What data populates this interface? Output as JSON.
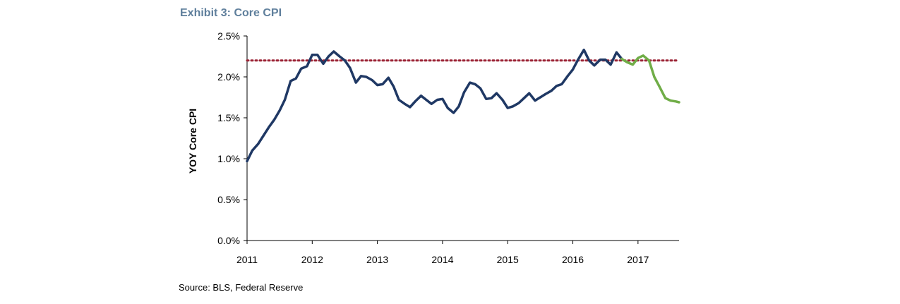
{
  "exhibit": {
    "title": "Exhibit 3: Core CPI",
    "source": "Source: BLS, Federal Reserve"
  },
  "chart_data": {
    "type": "line",
    "title": "Exhibit 3: Core CPI",
    "xlabel": "",
    "ylabel": "YOY Core CPI",
    "xlim": [
      2011.0,
      2017.63
    ],
    "ylim": [
      0,
      2.5
    ],
    "x_ticks": [
      2011,
      2012,
      2013,
      2014,
      2015,
      2016,
      2017
    ],
    "y_ticks": [
      0.0,
      0.5,
      1.0,
      1.5,
      2.0,
      2.5
    ],
    "y_tick_labels": [
      "0.0%",
      "0.5%",
      "1.0%",
      "1.5%",
      "2.0%",
      "2.5%"
    ],
    "x_tick_labels": [
      "2011",
      "2012",
      "2013",
      "2014",
      "2015",
      "2016",
      "2017"
    ],
    "grid": false,
    "legend": "none",
    "series": [
      {
        "color": "#1f3864",
        "points": [
          [
            2011.0,
            0.97
          ],
          [
            2011.08,
            1.1
          ],
          [
            2011.17,
            1.18
          ],
          [
            2011.25,
            1.28
          ],
          [
            2011.33,
            1.38
          ],
          [
            2011.42,
            1.48
          ],
          [
            2011.5,
            1.59
          ],
          [
            2011.58,
            1.72
          ],
          [
            2011.67,
            1.95
          ],
          [
            2011.75,
            1.98
          ],
          [
            2011.83,
            2.1
          ],
          [
            2011.92,
            2.13
          ],
          [
            2012.0,
            2.27
          ],
          [
            2012.08,
            2.27
          ],
          [
            2012.17,
            2.16
          ],
          [
            2012.25,
            2.25
          ],
          [
            2012.33,
            2.31
          ],
          [
            2012.42,
            2.25
          ],
          [
            2012.5,
            2.2
          ],
          [
            2012.58,
            2.11
          ],
          [
            2012.67,
            1.93
          ],
          [
            2012.75,
            2.01
          ],
          [
            2012.83,
            2.0
          ],
          [
            2012.92,
            1.96
          ],
          [
            2013.0,
            1.9
          ],
          [
            2013.08,
            1.91
          ],
          [
            2013.17,
            1.99
          ],
          [
            2013.25,
            1.88
          ],
          [
            2013.33,
            1.72
          ],
          [
            2013.42,
            1.67
          ],
          [
            2013.5,
            1.63
          ],
          [
            2013.58,
            1.7
          ],
          [
            2013.67,
            1.77
          ],
          [
            2013.75,
            1.72
          ],
          [
            2013.83,
            1.67
          ],
          [
            2013.92,
            1.72
          ],
          [
            2014.0,
            1.73
          ],
          [
            2014.08,
            1.62
          ],
          [
            2014.17,
            1.56
          ],
          [
            2014.25,
            1.64
          ],
          [
            2014.33,
            1.81
          ],
          [
            2014.42,
            1.93
          ],
          [
            2014.5,
            1.91
          ],
          [
            2014.58,
            1.86
          ],
          [
            2014.67,
            1.73
          ],
          [
            2014.75,
            1.74
          ],
          [
            2014.83,
            1.8
          ],
          [
            2014.92,
            1.72
          ],
          [
            2015.0,
            1.62
          ],
          [
            2015.08,
            1.64
          ],
          [
            2015.17,
            1.68
          ],
          [
            2015.25,
            1.74
          ],
          [
            2015.33,
            1.8
          ],
          [
            2015.42,
            1.71
          ],
          [
            2015.5,
            1.75
          ],
          [
            2015.58,
            1.79
          ],
          [
            2015.67,
            1.83
          ],
          [
            2015.75,
            1.89
          ],
          [
            2015.83,
            1.91
          ],
          [
            2015.92,
            2.01
          ],
          [
            2016.0,
            2.09
          ],
          [
            2016.08,
            2.21
          ],
          [
            2016.17,
            2.33
          ],
          [
            2016.25,
            2.2
          ],
          [
            2016.33,
            2.14
          ],
          [
            2016.42,
            2.21
          ],
          [
            2016.5,
            2.21
          ],
          [
            2016.58,
            2.15
          ],
          [
            2016.67,
            2.3
          ],
          [
            2016.75,
            2.22
          ]
        ]
      },
      {
        "color": "#70ad47",
        "points": [
          [
            2016.75,
            2.22
          ],
          [
            2016.83,
            2.18
          ],
          [
            2016.92,
            2.15
          ],
          [
            2017.0,
            2.23
          ],
          [
            2017.08,
            2.26
          ],
          [
            2017.17,
            2.2
          ],
          [
            2017.25,
            2.0
          ],
          [
            2017.33,
            1.88
          ],
          [
            2017.42,
            1.74
          ],
          [
            2017.5,
            1.71
          ],
          [
            2017.58,
            1.7
          ],
          [
            2017.63,
            1.69
          ]
        ]
      }
    ],
    "reference_line": {
      "y": 2.2,
      "color": "#9b2335",
      "style": "dotted"
    }
  }
}
